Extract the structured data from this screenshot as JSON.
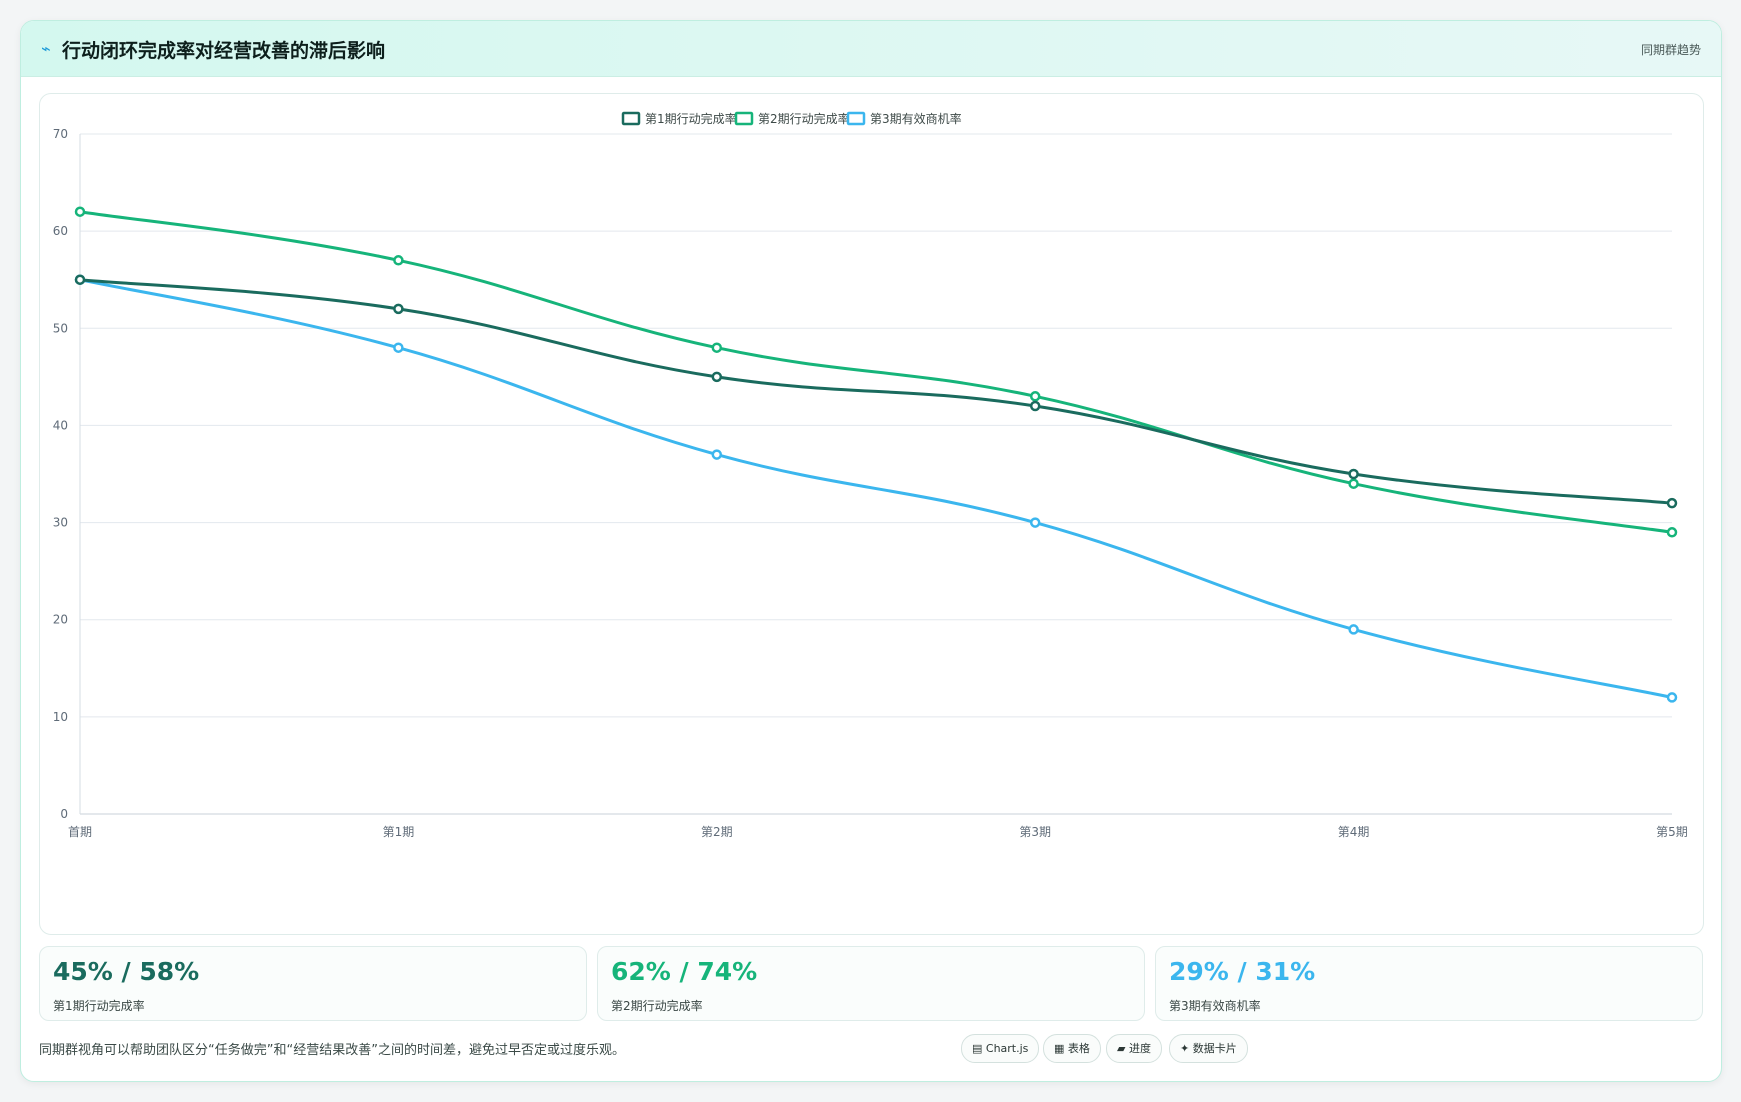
{
  "header": {
    "icon": "trend-line-icon",
    "title": "行动闭环完成率对经营改善的滞后影响",
    "tag": "同期群趋势"
  },
  "colors": {
    "series1": "#1a6b5e",
    "series2": "#16b47a",
    "series3": "#3bb6ee"
  },
  "chart_data": {
    "type": "line",
    "title": "",
    "xlabel": "",
    "ylabel": "",
    "categories": [
      "首期",
      "第1期",
      "第2期",
      "第3期",
      "第4期",
      "第5期"
    ],
    "ylim": [
      0,
      70
    ],
    "yticks": [
      0,
      10,
      20,
      30,
      40,
      50,
      60,
      70
    ],
    "grid": true,
    "legend": "top-center",
    "series": [
      {
        "name": "第1期行动完成率",
        "values": [
          55,
          52,
          45,
          42,
          35,
          32
        ]
      },
      {
        "name": "第2期行动完成率",
        "values": [
          62,
          57,
          48,
          43,
          34,
          29
        ]
      },
      {
        "name": "第3期有效商机率",
        "values": [
          55,
          48,
          37,
          30,
          19,
          12
        ]
      }
    ]
  },
  "stats": [
    {
      "value": "45% / 58%",
      "label": "第1期行动完成率"
    },
    {
      "value": "62% / 74%",
      "label": "第2期行动完成率"
    },
    {
      "value": "29% / 31%",
      "label": "第3期有效商机率"
    }
  ],
  "footer": {
    "note": "同期群视角可以帮助团队区分“任务做完”和“经营结果改善”之间的时间差，避免过早否定或过度乐观。",
    "chips": [
      "▤ Chart.js",
      "▦ 表格",
      "▰ 进度",
      "✦ 数据卡片"
    ]
  }
}
